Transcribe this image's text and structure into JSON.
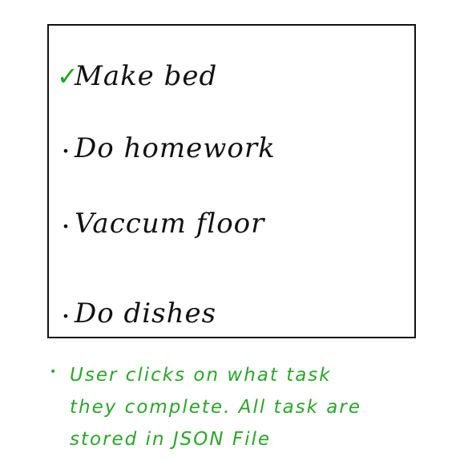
{
  "tasks": [
    {
      "label": "Make bed",
      "marker": "✓",
      "completed": true
    },
    {
      "label": "Do homework",
      "marker": "•",
      "completed": false
    },
    {
      "label": "Vaccum floor",
      "marker": "•",
      "completed": false
    },
    {
      "label": "Do dishes",
      "marker": "•",
      "completed": false
    }
  ],
  "note": {
    "bullet": "•",
    "lines": [
      "User clicks on what task",
      "they complete. All task are",
      "stored in JSON File"
    ]
  },
  "colors": {
    "ink": "#111111",
    "annotation_green": "#2aa52a",
    "check_green": "#1aa71a"
  }
}
